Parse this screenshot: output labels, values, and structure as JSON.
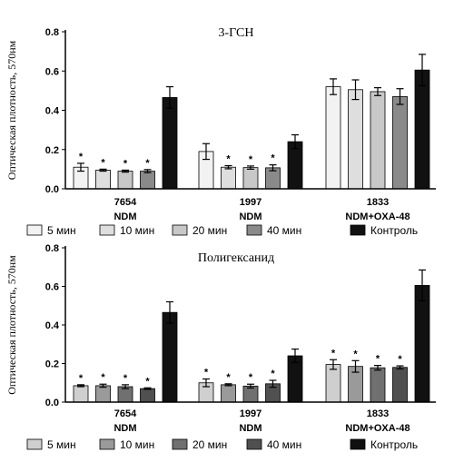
{
  "chart_data": [
    {
      "type": "bar",
      "title": "3-ГСН",
      "ylabel": "Оптическая плотность, 570нм",
      "ylim": [
        0,
        0.8
      ],
      "yticks": [
        "0.0",
        "0.2",
        "0.4",
        "0.6",
        "0.8"
      ],
      "categories": [
        [
          "7654",
          "NDM"
        ],
        [
          "1997",
          "NDM"
        ],
        [
          "1833",
          "NDM+OXA-48"
        ]
      ],
      "series": [
        {
          "name": "5 мин",
          "color": "#f2f2f2",
          "values": [
            0.11,
            0.19,
            0.52
          ],
          "errors": [
            0.02,
            0.04,
            0.04
          ],
          "significant": [
            true,
            false,
            false
          ]
        },
        {
          "name": "10 мин",
          "color": "#dedede",
          "values": [
            0.095,
            0.11,
            0.505
          ],
          "errors": [
            0.005,
            0.008,
            0.05
          ],
          "significant": [
            true,
            true,
            false
          ]
        },
        {
          "name": "20 мин",
          "color": "#c8c8c8",
          "values": [
            0.09,
            0.108,
            0.495
          ],
          "errors": [
            0.005,
            0.008,
            0.02
          ],
          "significant": [
            true,
            true,
            false
          ]
        },
        {
          "name": "40 мин",
          "color": "#8a8a8a",
          "values": [
            0.09,
            0.107,
            0.47
          ],
          "errors": [
            0.008,
            0.015,
            0.04
          ],
          "significant": [
            true,
            true,
            false
          ]
        },
        {
          "name": "Контроль",
          "color": "#111111",
          "values": [
            0.465,
            0.24,
            0.605
          ],
          "errors": [
            0.055,
            0.035,
            0.08
          ],
          "significant": [
            false,
            false,
            false
          ]
        }
      ],
      "legend": "below, single row"
    },
    {
      "type": "bar",
      "title": "Полигексанид",
      "ylabel": "Оптическая плотность, 570нм",
      "ylim": [
        0,
        0.8
      ],
      "yticks": [
        "0.0",
        "0.2",
        "0.4",
        "0.6",
        "0.8"
      ],
      "categories": [
        [
          "7654",
          "NDM"
        ],
        [
          "1997",
          "NDM"
        ],
        [
          "1833",
          "NDM+OXA-48"
        ]
      ],
      "series": [
        {
          "name": "5 мин",
          "color": "#cfcfcf",
          "values": [
            0.085,
            0.1,
            0.195
          ],
          "errors": [
            0.005,
            0.02,
            0.025
          ],
          "significant": [
            true,
            true,
            true
          ]
        },
        {
          "name": "10 мин",
          "color": "#9a9a9a",
          "values": [
            0.085,
            0.09,
            0.185
          ],
          "errors": [
            0.008,
            0.005,
            0.03
          ],
          "significant": [
            true,
            true,
            true
          ]
        },
        {
          "name": "20 мин",
          "color": "#707070",
          "values": [
            0.08,
            0.083,
            0.178
          ],
          "errors": [
            0.01,
            0.01,
            0.012
          ],
          "significant": [
            true,
            true,
            true
          ]
        },
        {
          "name": "40 мин",
          "color": "#505050",
          "values": [
            0.07,
            0.095,
            0.18
          ],
          "errors": [
            0.004,
            0.018,
            0.008
          ],
          "significant": [
            true,
            true,
            true
          ]
        },
        {
          "name": "Контроль",
          "color": "#111111",
          "values": [
            0.465,
            0.24,
            0.605
          ],
          "errors": [
            0.055,
            0.035,
            0.08
          ],
          "significant": [
            false,
            false,
            false
          ]
        }
      ],
      "legend": "below, single row"
    }
  ],
  "significance_marker": "*"
}
